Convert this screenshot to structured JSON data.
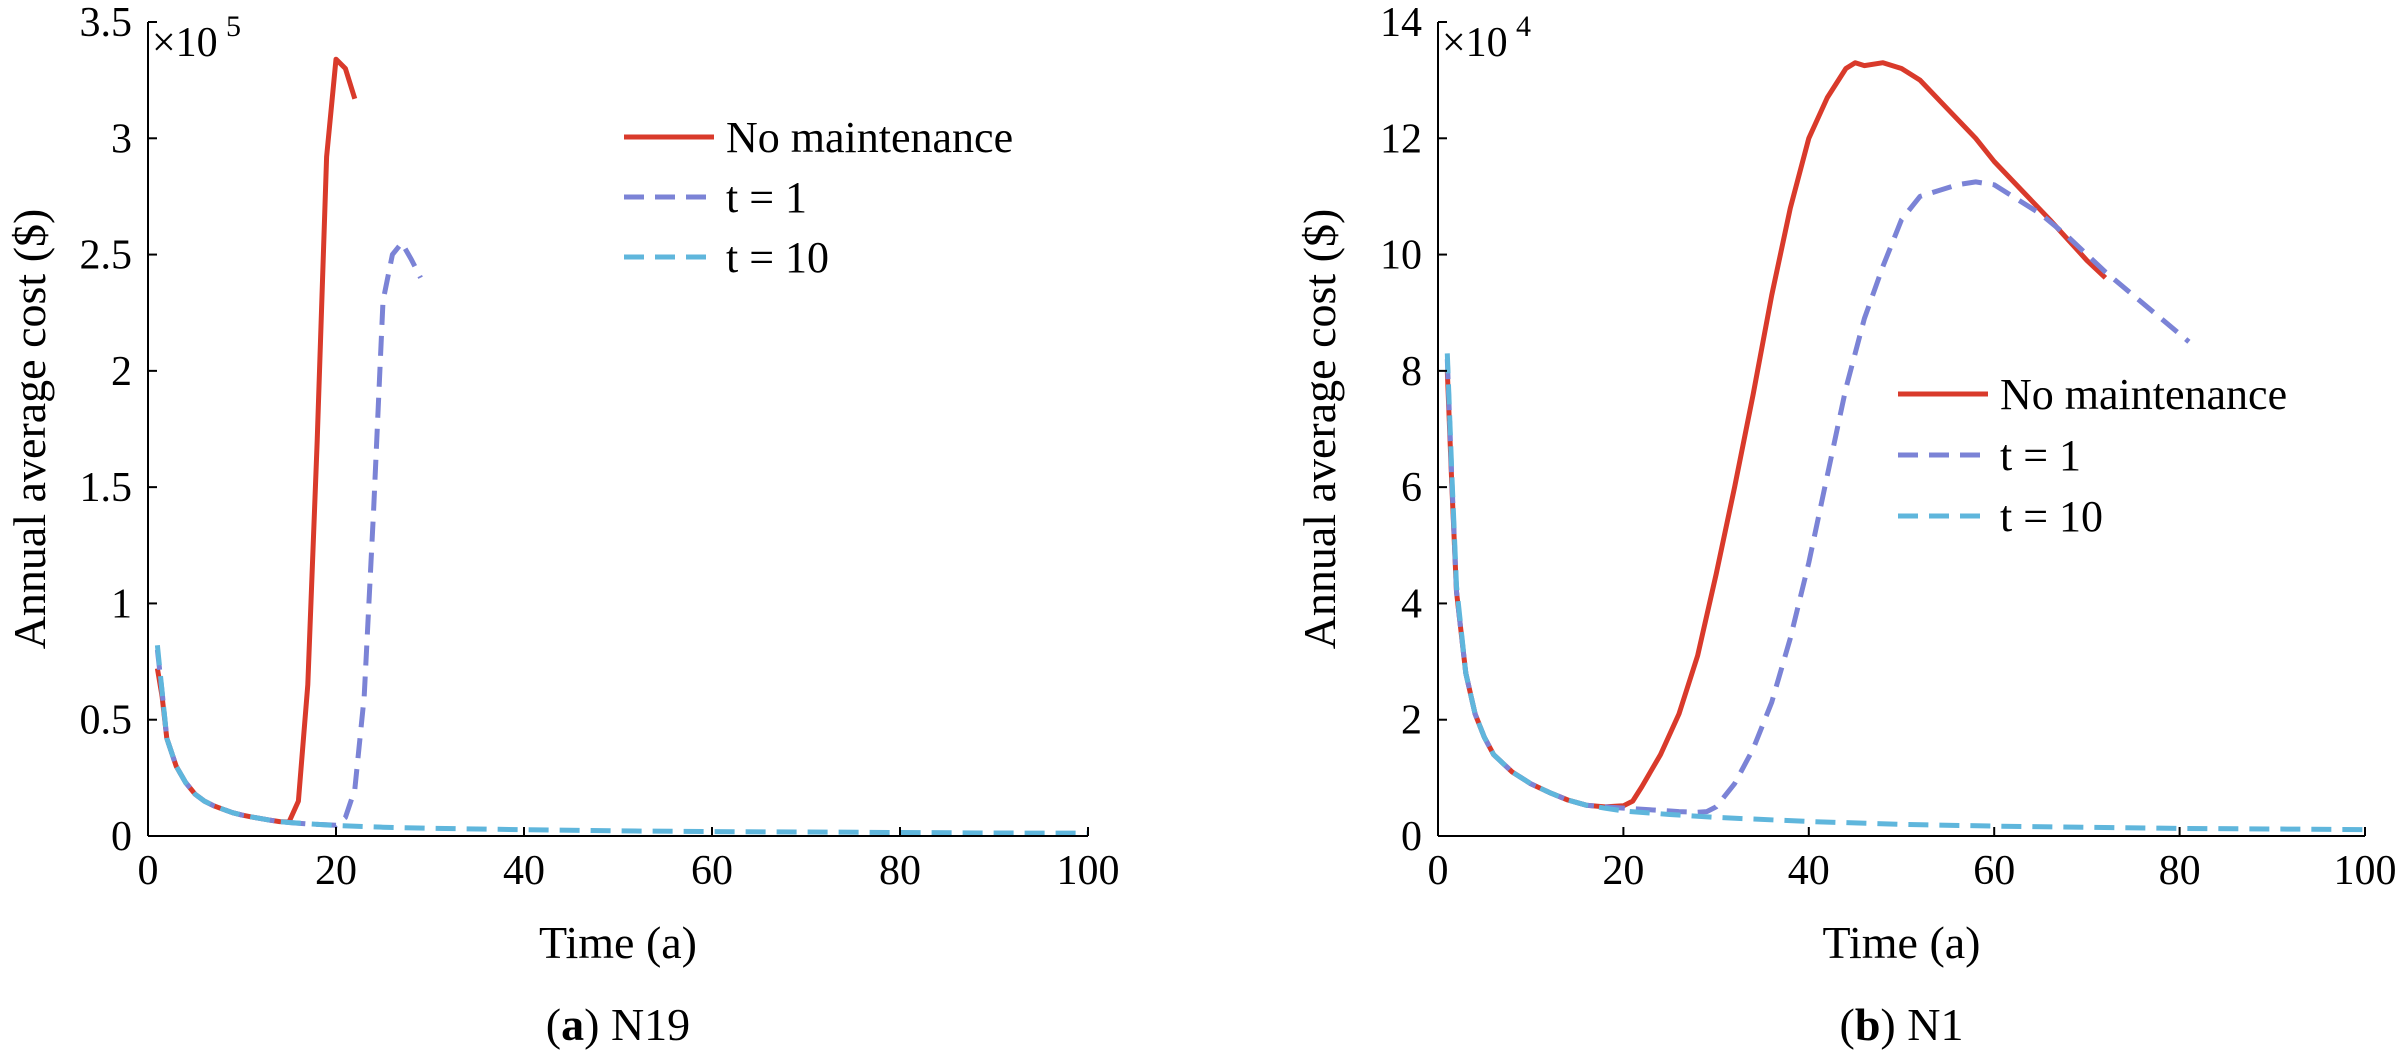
{
  "chart_data": [
    {
      "type": "line",
      "panel_label": "a",
      "panel_name": "N19",
      "xlabel": "Time (a)",
      "ylabel": "Annual average cost ($)",
      "y_multiplier": "×10",
      "y_exponent": "5",
      "xlim": [
        0,
        100
      ],
      "ylim": [
        0,
        3.5
      ],
      "xticks": [
        0,
        20,
        40,
        60,
        80,
        100
      ],
      "yticks": [
        0,
        0.5,
        1,
        1.5,
        2,
        2.5,
        3,
        3.5
      ],
      "ytick_labels": [
        "0",
        "0.5",
        "1",
        "1.5",
        "2",
        "2.5",
        "3",
        "3.5"
      ],
      "legend_position": "top-right",
      "series": [
        {
          "name": "No maintenance",
          "style": "solid",
          "color": "#d93a2b",
          "x": [
            1,
            1.5,
            2,
            3,
            4,
            5,
            6,
            7,
            8,
            9,
            10,
            11,
            12,
            13,
            14,
            15,
            16,
            17,
            18,
            19,
            20,
            21,
            22
          ],
          "y": [
            0.72,
            0.6,
            0.42,
            0.3,
            0.23,
            0.18,
            0.15,
            0.13,
            0.115,
            0.1,
            0.09,
            0.082,
            0.075,
            0.068,
            0.062,
            0.06,
            0.15,
            0.65,
            1.7,
            2.92,
            3.34,
            3.3,
            3.17
          ]
        },
        {
          "name": "t = 1",
          "style": "dashed",
          "color": "#7b83d6",
          "x": [
            1,
            1.5,
            2,
            3,
            4,
            5,
            6,
            7,
            8,
            9,
            10,
            11,
            12,
            13,
            14,
            15,
            16,
            17,
            18,
            19,
            20,
            21,
            22,
            23,
            24,
            25,
            26,
            27,
            28,
            29
          ],
          "y": [
            0.8,
            0.62,
            0.42,
            0.3,
            0.23,
            0.18,
            0.15,
            0.13,
            0.115,
            0.1,
            0.09,
            0.082,
            0.075,
            0.068,
            0.062,
            0.058,
            0.055,
            0.052,
            0.05,
            0.048,
            0.046,
            0.08,
            0.2,
            0.6,
            1.4,
            2.3,
            2.5,
            2.55,
            2.48,
            2.4
          ]
        },
        {
          "name": "t = 10",
          "style": "dashed",
          "color": "#5fb6dc",
          "x": [
            1,
            1.5,
            2,
            3,
            4,
            5,
            6,
            7,
            8,
            9,
            10,
            11,
            12,
            13,
            14,
            15,
            20,
            25,
            30,
            40,
            50,
            60,
            70,
            80,
            90,
            100
          ],
          "y": [
            0.82,
            0.62,
            0.42,
            0.3,
            0.23,
            0.18,
            0.15,
            0.13,
            0.115,
            0.1,
            0.09,
            0.082,
            0.075,
            0.068,
            0.062,
            0.058,
            0.045,
            0.038,
            0.033,
            0.027,
            0.022,
            0.019,
            0.017,
            0.015,
            0.013,
            0.012
          ]
        }
      ]
    },
    {
      "type": "line",
      "panel_label": "b",
      "panel_name": "N1",
      "xlabel": "Time (a)",
      "ylabel": "Annual average cost ($)",
      "y_multiplier": "×10",
      "y_exponent": "4",
      "xlim": [
        0,
        100
      ],
      "ylim": [
        0,
        14
      ],
      "xticks": [
        0,
        20,
        40,
        60,
        80,
        100
      ],
      "yticks": [
        0,
        2,
        4,
        6,
        8,
        10,
        12,
        14
      ],
      "ytick_labels": [
        "0",
        "2",
        "4",
        "6",
        "8",
        "10",
        "12",
        "14"
      ],
      "legend_position": "center-right",
      "series": [
        {
          "name": "No maintenance",
          "style": "solid",
          "color": "#d93a2b",
          "x": [
            1,
            1.5,
            2,
            3,
            4,
            5,
            6,
            8,
            10,
            12,
            14,
            16,
            18,
            20,
            21,
            22,
            24,
            26,
            28,
            30,
            32,
            34,
            36,
            38,
            40,
            42,
            44,
            45,
            46,
            48,
            50,
            52,
            55,
            58,
            60,
            63,
            66,
            70,
            72
          ],
          "y": [
            8.0,
            6.0,
            4.2,
            2.8,
            2.1,
            1.7,
            1.4,
            1.1,
            0.9,
            0.75,
            0.62,
            0.53,
            0.5,
            0.52,
            0.6,
            0.85,
            1.4,
            2.1,
            3.1,
            4.5,
            6.0,
            7.6,
            9.3,
            10.8,
            12.0,
            12.7,
            13.2,
            13.3,
            13.25,
            13.3,
            13.2,
            13.0,
            12.5,
            12.0,
            11.6,
            11.1,
            10.6,
            9.9,
            9.6
          ]
        },
        {
          "name": "t = 1",
          "style": "dashed",
          "color": "#7b83d6",
          "x": [
            1,
            1.5,
            2,
            3,
            4,
            5,
            6,
            8,
            10,
            12,
            14,
            16,
            18,
            20,
            22,
            24,
            26,
            28,
            29,
            30,
            32,
            34,
            36,
            38,
            40,
            42,
            44,
            46,
            48,
            50,
            52,
            54,
            56,
            58,
            60,
            62,
            65,
            68,
            70,
            72,
            75,
            78,
            81
          ],
          "y": [
            8.2,
            6.1,
            4.2,
            2.8,
            2.1,
            1.7,
            1.4,
            1.1,
            0.9,
            0.75,
            0.62,
            0.53,
            0.5,
            0.48,
            0.46,
            0.44,
            0.42,
            0.41,
            0.42,
            0.5,
            0.9,
            1.5,
            2.3,
            3.4,
            4.7,
            6.2,
            7.7,
            8.9,
            9.8,
            10.6,
            11.0,
            11.1,
            11.2,
            11.25,
            11.2,
            11.0,
            10.7,
            10.3,
            10.0,
            9.7,
            9.3,
            8.9,
            8.5
          ]
        },
        {
          "name": "t = 10",
          "style": "dashed",
          "color": "#5fb6dc",
          "x": [
            1,
            1.5,
            2,
            3,
            4,
            5,
            6,
            8,
            10,
            12,
            14,
            16,
            18,
            20,
            25,
            30,
            40,
            50,
            60,
            70,
            80,
            90,
            100
          ],
          "y": [
            8.3,
            6.2,
            4.3,
            2.8,
            2.1,
            1.7,
            1.4,
            1.1,
            0.9,
            0.75,
            0.62,
            0.53,
            0.48,
            0.43,
            0.37,
            0.32,
            0.25,
            0.2,
            0.17,
            0.15,
            0.13,
            0.12,
            0.11
          ]
        }
      ]
    }
  ]
}
